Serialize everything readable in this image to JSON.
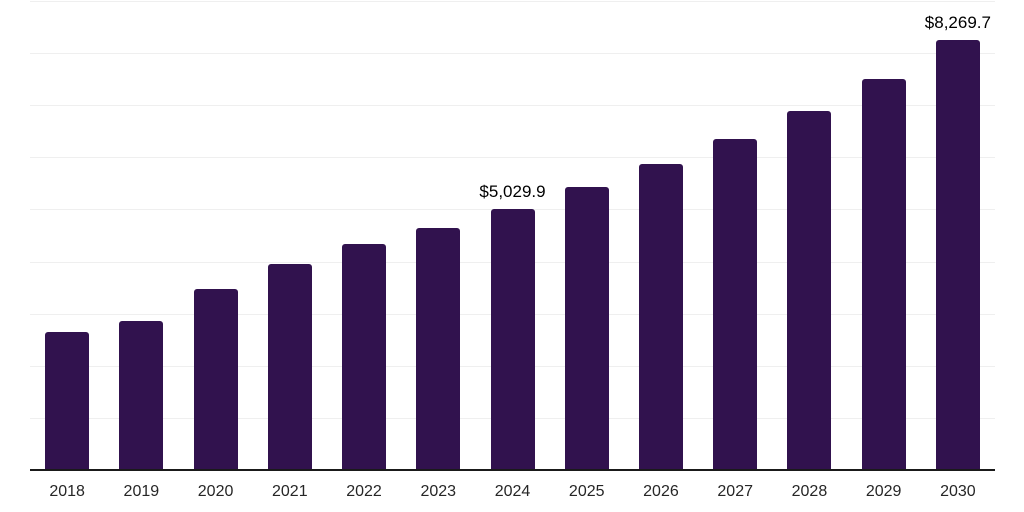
{
  "chart_data": {
    "type": "bar",
    "title": "",
    "categories": [
      "2018",
      "2019",
      "2020",
      "2021",
      "2022",
      "2023",
      "2024",
      "2025",
      "2026",
      "2027",
      "2028",
      "2029",
      "2030"
    ],
    "values": [
      2670,
      2880,
      3490,
      3970,
      4360,
      4660,
      5029.9,
      5450,
      5890,
      6370,
      6910,
      7520,
      8269.7
    ],
    "bar_labels": [
      "",
      "",
      "",
      "",
      "",
      "",
      "$5,029.9",
      "",
      "",
      "",
      "",
      "",
      "$8,269.7"
    ],
    "xlabel": "",
    "ylabel": "",
    "ylim": [
      0,
      9000
    ],
    "gridline_step": 1000,
    "grid": true,
    "legend": "none",
    "colors": {
      "bar": "#31124E",
      "gridline": "#EFEFEF",
      "axis": "#1A1A1A",
      "tick_label": "#262626",
      "value_label": "#000000",
      "background": "#FFFFFF"
    }
  }
}
